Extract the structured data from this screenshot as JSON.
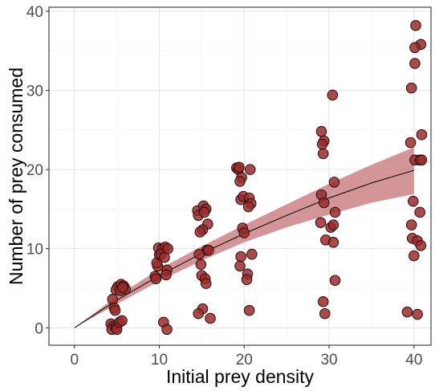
{
  "chart_data": {
    "type": "scatter",
    "title": "",
    "xlabel": "Initial prey density",
    "ylabel": "Number of prey consumed",
    "xlim": [
      -3.0,
      42.0
    ],
    "ylim": [
      -2.2,
      40.5
    ],
    "x_ticks": [
      0,
      10,
      20,
      30,
      40
    ],
    "y_ticks": [
      0,
      10,
      20,
      30,
      40
    ],
    "grid": true,
    "legend": "none",
    "colors": {
      "point_fill": "#9b2a2a",
      "point_stroke": "#1a0000",
      "ribbon": "#c97a7e",
      "line": "#000000",
      "grid_major": "#e6e6e6",
      "grid_minor": "#f2f2f2"
    },
    "points": [
      {
        "x": 4.5,
        "y": 3.6
      },
      {
        "x": 4.7,
        "y": 2.5
      },
      {
        "x": 4.8,
        "y": 2.2
      },
      {
        "x": 4.3,
        "y": 0.5
      },
      {
        "x": 4.6,
        "y": 0.2
      },
      {
        "x": 4.4,
        "y": -0.2
      },
      {
        "x": 4.9,
        "y": 0.0
      },
      {
        "x": 5.0,
        "y": -0.2
      },
      {
        "x": 5.3,
        "y": 0.7
      },
      {
        "x": 5.6,
        "y": 0.9
      },
      {
        "x": 5.1,
        "y": 5.2
      },
      {
        "x": 4.9,
        "y": 4.8
      },
      {
        "x": 5.5,
        "y": 5.5
      },
      {
        "x": 5.8,
        "y": 5.3
      },
      {
        "x": 6.0,
        "y": 4.9
      },
      {
        "x": 5.4,
        "y": 4.7
      },
      {
        "x": 5.7,
        "y": 5.1
      },
      {
        "x": 9.5,
        "y": 6.5
      },
      {
        "x": 9.6,
        "y": 6.2
      },
      {
        "x": 9.8,
        "y": 7.8
      },
      {
        "x": 9.7,
        "y": 8.2
      },
      {
        "x": 10.0,
        "y": 9.2
      },
      {
        "x": 9.9,
        "y": 10.1
      },
      {
        "x": 10.4,
        "y": 10.0
      },
      {
        "x": 10.7,
        "y": 10.2
      },
      {
        "x": 10.2,
        "y": 9.3
      },
      {
        "x": 10.6,
        "y": 8.9
      },
      {
        "x": 11.0,
        "y": 10.0
      },
      {
        "x": 10.9,
        "y": 7.3
      },
      {
        "x": 10.8,
        "y": 6.7
      },
      {
        "x": 10.5,
        "y": 0.7
      },
      {
        "x": 10.9,
        "y": -0.2
      },
      {
        "x": 14.5,
        "y": 14.8
      },
      {
        "x": 14.6,
        "y": 14.2
      },
      {
        "x": 15.2,
        "y": 15.4
      },
      {
        "x": 15.5,
        "y": 15.0
      },
      {
        "x": 15.3,
        "y": 14.6
      },
      {
        "x": 15.7,
        "y": 13.1
      },
      {
        "x": 15.1,
        "y": 12.4
      },
      {
        "x": 14.8,
        "y": 12.1
      },
      {
        "x": 15.6,
        "y": 9.8
      },
      {
        "x": 15.8,
        "y": 9.8
      },
      {
        "x": 14.7,
        "y": 9.3
      },
      {
        "x": 14.9,
        "y": 8.0
      },
      {
        "x": 15.0,
        "y": 6.6
      },
      {
        "x": 15.4,
        "y": 6.2
      },
      {
        "x": 15.5,
        "y": 5.6
      },
      {
        "x": 15.1,
        "y": 2.4
      },
      {
        "x": 14.6,
        "y": 1.8
      },
      {
        "x": 16.0,
        "y": 1.2
      },
      {
        "x": 19.1,
        "y": 20.2
      },
      {
        "x": 19.3,
        "y": 20.0
      },
      {
        "x": 19.4,
        "y": 20.3
      },
      {
        "x": 19.7,
        "y": 19.0
      },
      {
        "x": 19.5,
        "y": 18.5
      },
      {
        "x": 20.7,
        "y": 20.0
      },
      {
        "x": 19.6,
        "y": 16.2
      },
      {
        "x": 19.9,
        "y": 16.6
      },
      {
        "x": 20.6,
        "y": 16.4
      },
      {
        "x": 20.8,
        "y": 15.7
      },
      {
        "x": 20.5,
        "y": 15.3
      },
      {
        "x": 19.8,
        "y": 12.6
      },
      {
        "x": 20.0,
        "y": 12.0
      },
      {
        "x": 20.9,
        "y": 9.3
      },
      {
        "x": 19.6,
        "y": 9.0
      },
      {
        "x": 19.5,
        "y": 7.8
      },
      {
        "x": 20.4,
        "y": 6.8
      },
      {
        "x": 20.3,
        "y": 6.1
      },
      {
        "x": 20.6,
        "y": 2.2
      },
      {
        "x": 29.1,
        "y": 24.8
      },
      {
        "x": 29.4,
        "y": 23.6
      },
      {
        "x": 29.2,
        "y": 23.2
      },
      {
        "x": 29.3,
        "y": 22.0
      },
      {
        "x": 30.4,
        "y": 29.4
      },
      {
        "x": 30.6,
        "y": 18.4
      },
      {
        "x": 29.1,
        "y": 16.8
      },
      {
        "x": 29.4,
        "y": 15.8
      },
      {
        "x": 29.0,
        "y": 13.3
      },
      {
        "x": 30.2,
        "y": 12.7
      },
      {
        "x": 30.5,
        "y": 13.0
      },
      {
        "x": 30.7,
        "y": 14.6
      },
      {
        "x": 29.6,
        "y": 11.1
      },
      {
        "x": 30.5,
        "y": 10.8
      },
      {
        "x": 30.7,
        "y": 6.0
      },
      {
        "x": 29.3,
        "y": 3.3
      },
      {
        "x": 29.5,
        "y": 1.8
      },
      {
        "x": 40.2,
        "y": 38.2
      },
      {
        "x": 40.8,
        "y": 35.8
      },
      {
        "x": 40.1,
        "y": 35.4
      },
      {
        "x": 40.1,
        "y": 33.4
      },
      {
        "x": 39.7,
        "y": 30.3
      },
      {
        "x": 40.9,
        "y": 24.4
      },
      {
        "x": 39.6,
        "y": 23.4
      },
      {
        "x": 40.1,
        "y": 21.2
      },
      {
        "x": 40.7,
        "y": 21.2
      },
      {
        "x": 40.9,
        "y": 21.2
      },
      {
        "x": 39.9,
        "y": 16.0
      },
      {
        "x": 40.7,
        "y": 14.6
      },
      {
        "x": 39.7,
        "y": 13.0
      },
      {
        "x": 39.8,
        "y": 11.3
      },
      {
        "x": 40.4,
        "y": 11.0
      },
      {
        "x": 40.8,
        "y": 10.4
      },
      {
        "x": 40.0,
        "y": 9.1
      },
      {
        "x": 39.2,
        "y": 2.0
      },
      {
        "x": 40.4,
        "y": 1.7
      }
    ],
    "fit_line": [
      {
        "x": 0,
        "y": 0.0
      },
      {
        "x": 5,
        "y": 3.5
      },
      {
        "x": 10,
        "y": 6.6
      },
      {
        "x": 15,
        "y": 9.4
      },
      {
        "x": 20,
        "y": 11.9
      },
      {
        "x": 25,
        "y": 14.2
      },
      {
        "x": 30,
        "y": 16.4
      },
      {
        "x": 35,
        "y": 18.3
      },
      {
        "x": 40,
        "y": 19.9
      }
    ],
    "ribbon": [
      {
        "x": 0,
        "lo": 0.0,
        "hi": 0.0
      },
      {
        "x": 5,
        "lo": 3.0,
        "hi": 4.0
      },
      {
        "x": 10,
        "lo": 5.9,
        "hi": 7.4
      },
      {
        "x": 15,
        "lo": 8.5,
        "hi": 10.3
      },
      {
        "x": 20,
        "lo": 10.8,
        "hi": 13.0
      },
      {
        "x": 25,
        "lo": 12.7,
        "hi": 15.6
      },
      {
        "x": 30,
        "lo": 14.3,
        "hi": 18.2
      },
      {
        "x": 35,
        "lo": 15.8,
        "hi": 20.6
      },
      {
        "x": 40,
        "lo": 16.9,
        "hi": 22.8
      }
    ]
  }
}
